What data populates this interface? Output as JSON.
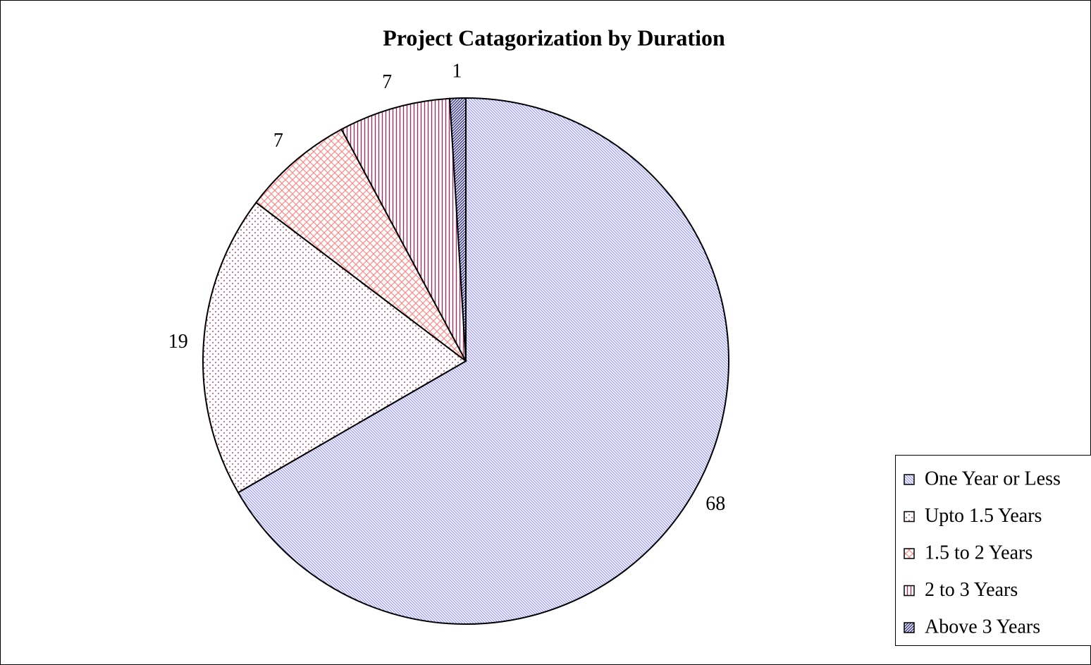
{
  "chart_data": {
    "type": "pie",
    "title": "Project Catagorization by Duration",
    "categories": [
      "One Year or Less",
      "Upto 1.5 Years",
      "1.5 to 2 Years",
      "2 to 3 Years",
      "Above 3 Years"
    ],
    "values": [
      68,
      19,
      7,
      7,
      1
    ],
    "colors": [
      "#9999ff",
      "#cc4466",
      "#ff8888",
      "#993366",
      "#333399"
    ],
    "legend": "right"
  }
}
